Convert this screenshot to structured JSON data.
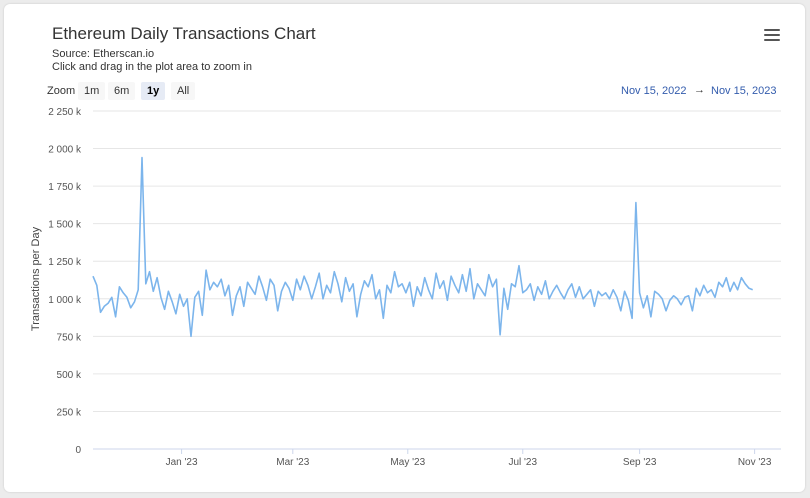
{
  "header": {
    "title": "Ethereum Daily Transactions Chart",
    "source": "Source: Etherscan.io",
    "hint": "Click and drag in the plot area to zoom in"
  },
  "zoom": {
    "label": "Zoom",
    "buttons": [
      "1m",
      "6m",
      "1y",
      "All"
    ],
    "active": "1y"
  },
  "range": {
    "from": "Nov 15, 2022",
    "arrow": "→",
    "to": "Nov 15, 2023"
  },
  "icons": {
    "menu": "hamburger-menu-icon"
  },
  "colors": {
    "series": "#7cb5ec"
  },
  "chart_data": {
    "type": "line",
    "title": "Ethereum Daily Transactions Chart",
    "ylabel": "Transactions per Day",
    "xlabel": "",
    "ylim": [
      0,
      2250000
    ],
    "yticks": [
      0,
      250000,
      500000,
      750000,
      1000000,
      1250000,
      1500000,
      1750000,
      2000000,
      2250000
    ],
    "ytick_labels": [
      "0",
      "250 k",
      "500 k",
      "750 k",
      "1 000 k",
      "1 250 k",
      "1 500 k",
      "1 750 k",
      "2 000 k",
      "2 250 k"
    ],
    "xlim": [
      "2022-11-15",
      "2023-11-15"
    ],
    "xticks": [
      "2023-01-01",
      "2023-03-01",
      "2023-05-01",
      "2023-07-01",
      "2023-09-01",
      "2023-11-01"
    ],
    "xtick_labels": [
      "Jan '23",
      "Mar '23",
      "May '23",
      "Jul '23",
      "Sep '23",
      "Nov '23"
    ],
    "grid": true,
    "series": [
      {
        "start": "2022-11-15",
        "step_days": 2,
        "values": [
          1150000,
          1090000,
          910000,
          950000,
          970000,
          1010000,
          880000,
          1080000,
          1040000,
          1010000,
          940000,
          980000,
          1060000,
          1940000,
          1100000,
          1180000,
          1050000,
          1140000,
          1010000,
          930000,
          1050000,
          980000,
          900000,
          1030000,
          950000,
          1000000,
          750000,
          1010000,
          1050000,
          890000,
          1190000,
          1060000,
          1110000,
          1080000,
          1130000,
          1020000,
          1090000,
          890000,
          1020000,
          1080000,
          950000,
          1110000,
          1070000,
          1030000,
          1150000,
          1080000,
          990000,
          1130000,
          1090000,
          920000,
          1050000,
          1110000,
          1070000,
          990000,
          1130000,
          1060000,
          1150000,
          1090000,
          1000000,
          1080000,
          1170000,
          1000000,
          1090000,
          1040000,
          1180000,
          1100000,
          980000,
          1140000,
          1050000,
          1100000,
          880000,
          1030000,
          1120000,
          1080000,
          1160000,
          1000000,
          1060000,
          870000,
          1090000,
          1040000,
          1180000,
          1080000,
          1100000,
          1040000,
          1110000,
          950000,
          1080000,
          1020000,
          1140000,
          1060000,
          1000000,
          1170000,
          1070000,
          1120000,
          990000,
          1150000,
          1090000,
          1040000,
          1160000,
          1050000,
          1200000,
          1000000,
          1100000,
          1060000,
          1020000,
          1160000,
          1080000,
          1130000,
          760000,
          1070000,
          930000,
          1100000,
          1080000,
          1220000,
          1040000,
          1060000,
          1100000,
          990000,
          1080000,
          1030000,
          1120000,
          1000000,
          1050000,
          1090000,
          1040000,
          1000000,
          1060000,
          1100000,
          1010000,
          1080000,
          1000000,
          1030000,
          1060000,
          950000,
          1050000,
          1020000,
          1040000,
          1000000,
          1060000,
          1010000,
          920000,
          1050000,
          990000,
          870000,
          1640000,
          1040000,
          940000,
          1020000,
          880000,
          1050000,
          1030000,
          1000000,
          920000,
          990000,
          1020000,
          1000000,
          960000,
          1010000,
          1020000,
          920000,
          1070000,
          1020000,
          1090000,
          1040000,
          1060000,
          1010000,
          1110000,
          1080000,
          1140000,
          1050000,
          1110000,
          1060000,
          1140000,
          1100000,
          1070000,
          1060000
        ]
      }
    ]
  }
}
